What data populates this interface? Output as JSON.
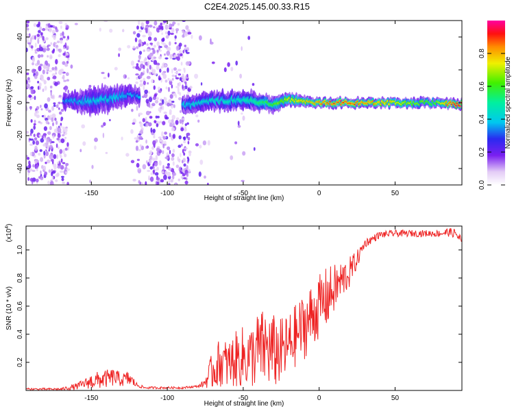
{
  "page": {
    "title": "C2E4.2025.145.00.33.R15"
  },
  "chart_data": [
    {
      "type": "heatmap",
      "name": "spectrogram",
      "xlabel": "Height of straight line (km)",
      "ylabel": "Frequency (Hz)",
      "xlim": [
        -193,
        94
      ],
      "ylim": [
        -50,
        50
      ],
      "xticks": [
        -150,
        -100,
        -50,
        0,
        50
      ],
      "yticks": [
        -40,
        -20,
        0,
        20,
        40
      ],
      "grid": false,
      "colorbar": {
        "label": "Normalized spectral amplitude",
        "range": [
          0,
          1
        ],
        "ticks": [
          "0.0",
          "0.2",
          "0.4",
          "0.6",
          "0.8"
        ],
        "tick_values": [
          0.0,
          0.2,
          0.4,
          0.6,
          0.8
        ],
        "colormap": "white-purple-blue-cyan-green-yellow-red-magenta"
      },
      "band": [
        {
          "x": -165,
          "center": 1,
          "halfwidth": 5,
          "peak": 0.35
        },
        {
          "x": -150,
          "center": 1,
          "halfwidth": 8,
          "peak": 0.4
        },
        {
          "x": -135,
          "center": 3,
          "halfwidth": 8,
          "peak": 0.4
        },
        {
          "x": -125,
          "center": 5,
          "halfwidth": 6,
          "peak": 0.35
        },
        {
          "x": -88,
          "center": -2,
          "halfwidth": 5,
          "peak": 0.4
        },
        {
          "x": -70,
          "center": 1,
          "halfwidth": 6,
          "peak": 0.45
        },
        {
          "x": -50,
          "center": 2,
          "halfwidth": 6,
          "peak": 0.45
        },
        {
          "x": -30,
          "center": -1,
          "halfwidth": 5,
          "peak": 0.6
        },
        {
          "x": -20,
          "center": 2,
          "halfwidth": 4,
          "peak": 0.7
        },
        {
          "x": 0,
          "center": 0,
          "halfwidth": 3,
          "peak": 0.85
        },
        {
          "x": 20,
          "center": 0,
          "halfwidth": 3,
          "peak": 0.9
        },
        {
          "x": 50,
          "center": 0,
          "halfwidth": 3,
          "peak": 0.75
        },
        {
          "x": 75,
          "center": 0,
          "halfwidth": 3,
          "peak": 0.6
        },
        {
          "x": 90,
          "center": -1,
          "halfwidth": 3,
          "peak": 0.95
        }
      ]
    },
    {
      "type": "line",
      "name": "snr",
      "xlabel": "Height of straight line (km)",
      "ylabel": "SNR (10 * v/v)",
      "multiplier": "(x10",
      "multiplier_exp": "4",
      "xlim": [
        -193,
        94
      ],
      "ylim": [
        0.0,
        1.17
      ],
      "xticks": [
        -150,
        -100,
        -50,
        0,
        50
      ],
      "yticks": [
        0.2,
        0.4,
        0.6,
        0.8,
        1.0
      ],
      "ytick_labels": [
        "0.2",
        "0.4",
        "0.6",
        "0.8",
        "1.0"
      ],
      "grid": false,
      "color": "#ee2222",
      "series": [
        {
          "x": [
            -193,
            -180,
            -170,
            -160,
            -155,
            -150,
            -145,
            -140,
            -135,
            -130,
            -125,
            -120,
            -115,
            -110,
            -100,
            -90,
            -80,
            -76,
            -70,
            -65,
            -60,
            -55,
            -50,
            -45,
            -40,
            -35,
            -30,
            -25,
            -20,
            -15,
            -10,
            -5,
            0,
            5,
            10,
            15,
            20,
            25,
            30,
            40,
            50,
            60,
            70,
            80,
            85,
            90,
            94
          ],
          "y": [
            0.01,
            0.01,
            0.01,
            0.03,
            0.05,
            0.07,
            0.08,
            0.09,
            0.1,
            0.08,
            0.09,
            0.04,
            0.02,
            0.02,
            0.02,
            0.02,
            0.03,
            0.05,
            0.16,
            0.22,
            0.2,
            0.24,
            0.26,
            0.26,
            0.32,
            0.33,
            0.3,
            0.3,
            0.34,
            0.42,
            0.48,
            0.55,
            0.62,
            0.68,
            0.74,
            0.8,
            0.85,
            0.94,
            1.05,
            1.11,
            1.12,
            1.12,
            1.12,
            1.12,
            1.13,
            1.12,
            1.06
          ],
          "noise": [
            0.01,
            0.01,
            0.01,
            0.03,
            0.04,
            0.07,
            0.08,
            0.08,
            0.08,
            0.06,
            0.07,
            0.02,
            0.01,
            0.01,
            0.01,
            0.01,
            0.01,
            0.03,
            0.18,
            0.22,
            0.22,
            0.25,
            0.28,
            0.28,
            0.35,
            0.35,
            0.34,
            0.3,
            0.3,
            0.28,
            0.3,
            0.3,
            0.28,
            0.28,
            0.22,
            0.18,
            0.14,
            0.08,
            0.04,
            0.03,
            0.03,
            0.03,
            0.03,
            0.03,
            0.04,
            0.04,
            0.06
          ]
        }
      ]
    }
  ]
}
